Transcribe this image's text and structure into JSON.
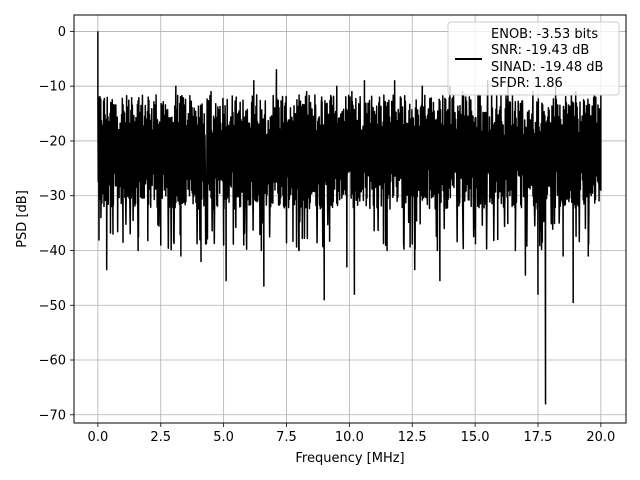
{
  "chart_data": {
    "type": "line",
    "title": "",
    "xlabel": "Frequency [MHz]",
    "ylabel": "PSD [dB]",
    "xlim": [
      -0.95,
      21.0
    ],
    "ylim": [
      -71.5,
      3.0
    ],
    "xticks": [
      0.0,
      2.5,
      5.0,
      7.5,
      10.0,
      12.5,
      15.0,
      17.5,
      20.0
    ],
    "xtick_labels": [
      "0.0",
      "2.5",
      "5.0",
      "7.5",
      "10.0",
      "12.5",
      "15.0",
      "17.5",
      "20.0"
    ],
    "yticks": [
      0,
      -10,
      -20,
      -30,
      -40,
      -50,
      -60,
      -70
    ],
    "ytick_labels": [
      "0",
      "−10",
      "−20",
      "−30",
      "−40",
      "−50",
      "−60",
      "−70"
    ],
    "grid": true,
    "legend_position": "top-right",
    "legend_lines": [
      "ENOB: -3.53 bits",
      "SNR: -19.43 dB",
      "SINAD: -19.48 dB",
      "SFDR: 1.86"
    ],
    "line_color": "#000000",
    "series": [
      {
        "noise_floor_db": -22,
        "points": [
          [
            0.0,
            0.0
          ],
          [
            0.03,
            -12
          ],
          [
            0.08,
            -25
          ],
          [
            0.12,
            -34
          ],
          [
            0.2,
            -18
          ],
          [
            0.25,
            -29
          ],
          [
            0.35,
            -43.5
          ],
          [
            0.5,
            -16
          ],
          [
            0.6,
            -37
          ],
          [
            1.0,
            -38.5
          ],
          [
            1.2,
            -14
          ],
          [
            1.6,
            -40
          ],
          [
            2.0,
            -12
          ],
          [
            2.5,
            -39
          ],
          [
            3.1,
            -10
          ],
          [
            3.3,
            -41
          ],
          [
            3.6,
            -15
          ],
          [
            4.1,
            -42
          ],
          [
            4.5,
            -11
          ],
          [
            5.0,
            -39
          ],
          [
            5.1,
            -45.5
          ],
          [
            5.5,
            -12
          ],
          [
            5.8,
            -39
          ],
          [
            6.2,
            -9
          ],
          [
            6.5,
            -40
          ],
          [
            6.6,
            -46.5
          ],
          [
            7.1,
            -7
          ],
          [
            7.5,
            -38
          ],
          [
            8.0,
            -40
          ],
          [
            8.3,
            -11
          ],
          [
            8.9,
            -12
          ],
          [
            9.0,
            -49
          ],
          [
            9.5,
            -10
          ],
          [
            9.9,
            -43
          ],
          [
            10.1,
            -11
          ],
          [
            10.2,
            -48
          ],
          [
            10.6,
            -9
          ],
          [
            11.2,
            -12
          ],
          [
            11.5,
            -40
          ],
          [
            11.8,
            -9
          ],
          [
            12.6,
            -43.5
          ],
          [
            12.9,
            -10
          ],
          [
            13.5,
            -40
          ],
          [
            13.6,
            -45.5
          ],
          [
            14.0,
            -10
          ],
          [
            14.5,
            -11
          ],
          [
            15.0,
            -36
          ],
          [
            15.5,
            -9
          ],
          [
            15.9,
            -38
          ],
          [
            16.3,
            -9
          ],
          [
            16.6,
            -40
          ],
          [
            17.0,
            -44.5
          ],
          [
            17.3,
            -11
          ],
          [
            17.5,
            -48
          ],
          [
            17.8,
            -68
          ],
          [
            18.2,
            -10
          ],
          [
            18.5,
            -41
          ],
          [
            18.9,
            -49.5
          ],
          [
            19.0,
            -11
          ],
          [
            19.5,
            -41
          ],
          [
            19.8,
            -12
          ],
          [
            20.0,
            -29
          ]
        ]
      }
    ]
  }
}
